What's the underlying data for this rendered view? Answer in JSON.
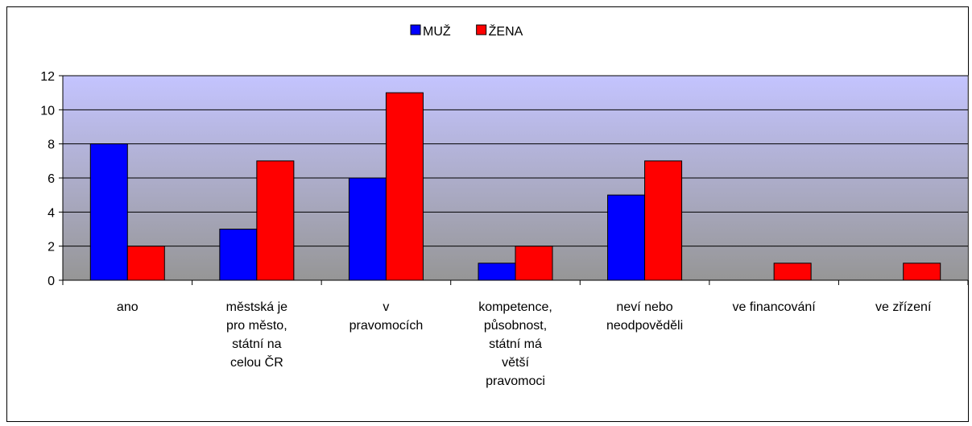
{
  "chart_data": {
    "type": "bar",
    "categories": [
      "ano",
      "městská je\npro město,\nstátní na\ncelou ČR",
      "v\npravomocích",
      "kompetence,\npůsobnost,\nstátní má\nvětší\npravomoci",
      "neví nebo\nneodpověděli",
      "ve financování",
      "ve zřízení"
    ],
    "series": [
      {
        "name": "MUŽ",
        "color": "#0000ff",
        "values": [
          8,
          3,
          6,
          1,
          5,
          0,
          0
        ]
      },
      {
        "name": "ŽENA",
        "color": "#ff0000",
        "values": [
          2,
          7,
          11,
          2,
          7,
          1,
          1
        ]
      }
    ],
    "ylim": [
      0,
      12
    ],
    "yticks": [
      0,
      2,
      4,
      6,
      8,
      10,
      12
    ],
    "grid": true,
    "legend": "top"
  }
}
